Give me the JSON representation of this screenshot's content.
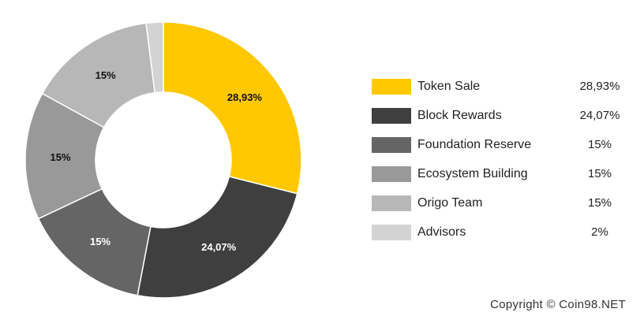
{
  "chart_data": {
    "type": "pie",
    "title": "",
    "donut": true,
    "slices": [
      {
        "name": "Token Sale",
        "value": 28.93,
        "label": "28,93%",
        "color": "#FFC800"
      },
      {
        "name": "Block Rewards",
        "value": 24.07,
        "label": "24,07%",
        "color": "#3F3F3F"
      },
      {
        "name": "Foundation Reserve",
        "value": 15,
        "label": "15%",
        "color": "#656565"
      },
      {
        "name": "Ecosystem Building",
        "value": 15,
        "label": "15%",
        "color": "#999999"
      },
      {
        "name": "Origo Team",
        "value": 15,
        "label": "15%",
        "color": "#B7B7B7"
      },
      {
        "name": "Advisors",
        "value": 2,
        "label": "2%",
        "color": "#D3D3D3"
      }
    ],
    "legend_placement": "right"
  },
  "legend": {
    "items": [
      {
        "label": "Token Sale",
        "value": "28,93%"
      },
      {
        "label": "Block Rewards",
        "value": "24,07%"
      },
      {
        "label": "Foundation Reserve",
        "value": "15%"
      },
      {
        "label": "Ecosystem Building",
        "value": "15%"
      },
      {
        "label": "Origo Team",
        "value": "15%"
      },
      {
        "label": "Advisors",
        "value": "2%"
      }
    ]
  },
  "footer": {
    "copyright": "Copyright © Coin98.NET"
  }
}
